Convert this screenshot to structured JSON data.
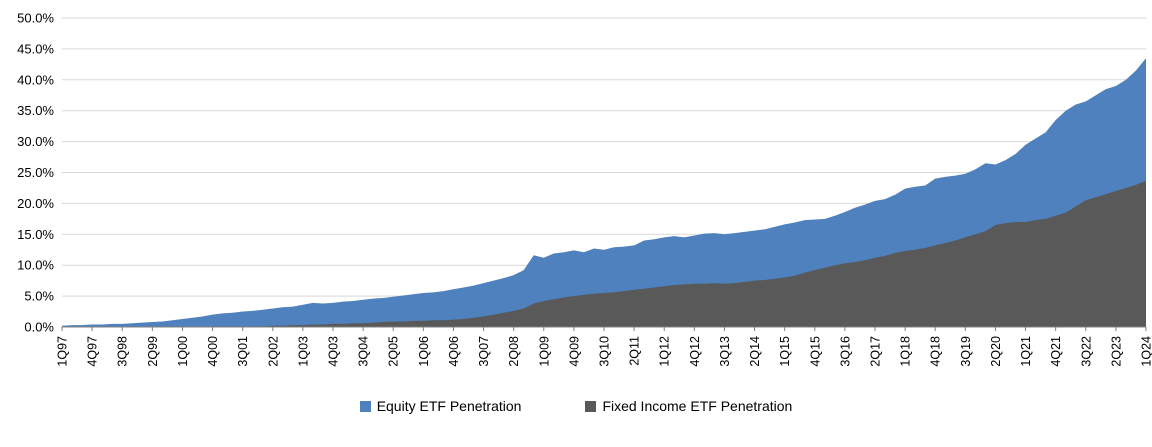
{
  "chart_data": {
    "type": "area",
    "title": "",
    "xlabel": "",
    "ylabel": "",
    "ylim": [
      0,
      50
    ],
    "ytick_step": 5,
    "y_tick_labels": [
      "0.0%",
      "5.0%",
      "10.0%",
      "15.0%",
      "20.0%",
      "25.0%",
      "30.0%",
      "35.0%",
      "40.0%",
      "45.0%",
      "50.0%"
    ],
    "x_tick_labels": [
      "1Q97",
      "4Q97",
      "3Q98",
      "2Q99",
      "1Q00",
      "4Q00",
      "3Q01",
      "2Q02",
      "1Q03",
      "4Q03",
      "3Q04",
      "2Q05",
      "1Q06",
      "4Q06",
      "3Q07",
      "2Q08",
      "1Q09",
      "4Q09",
      "3Q10",
      "2Q11",
      "1Q12",
      "4Q12",
      "3Q13",
      "2Q14",
      "1Q15",
      "4Q15",
      "3Q16",
      "2Q17",
      "1Q18",
      "4Q18",
      "3Q19",
      "2Q20",
      "1Q21",
      "4Q21",
      "3Q22",
      "2Q23",
      "1Q24"
    ],
    "x_label_every": 3,
    "grid": true,
    "legend_position": "bottom",
    "colors": {
      "gridline": "#D9D9D9",
      "axis": "#808080",
      "tick_text": "#000000"
    },
    "series": [
      {
        "name": "Equity ETF Penetration",
        "color": "#4E81BD",
        "values": [
          0.2,
          0.3,
          0.3,
          0.4,
          0.4,
          0.5,
          0.5,
          0.6,
          0.7,
          0.8,
          0.9,
          1.1,
          1.3,
          1.5,
          1.7,
          2.0,
          2.2,
          2.3,
          2.5,
          2.6,
          2.8,
          3.0,
          3.2,
          3.3,
          3.6,
          3.9,
          3.8,
          3.9,
          4.1,
          4.2,
          4.4,
          4.6,
          4.7,
          4.9,
          5.1,
          5.3,
          5.5,
          5.6,
          5.8,
          6.1,
          6.4,
          6.7,
          7.1,
          7.5,
          7.9,
          8.4,
          9.2,
          11.6,
          11.2,
          11.9,
          12.1,
          12.4,
          12.1,
          12.7,
          12.5,
          12.9,
          13.0,
          13.2,
          14.0,
          14.2,
          14.5,
          14.7,
          14.5,
          14.8,
          15.1,
          15.2,
          15.0,
          15.2,
          15.4,
          15.6,
          15.8,
          16.2,
          16.6,
          16.9,
          17.3,
          17.4,
          17.5,
          18.0,
          18.6,
          19.3,
          19.8,
          20.4,
          20.7,
          21.4,
          22.4,
          22.7,
          22.9,
          24.0,
          24.3,
          24.5,
          24.8,
          25.5,
          26.5,
          26.3,
          27.0,
          28.0,
          29.5,
          30.5,
          31.5,
          33.5,
          35.0,
          36.0,
          36.5,
          37.5,
          38.5,
          39.0,
          40.0,
          41.5,
          43.5
        ]
      },
      {
        "name": "Fixed Income ETF Penetration",
        "color": "#595959",
        "values": [
          0.0,
          0.0,
          0.0,
          0.0,
          0.0,
          0.0,
          0.0,
          0.0,
          0.0,
          0.0,
          0.0,
          0.0,
          0.0,
          0.0,
          0.0,
          0.1,
          0.1,
          0.1,
          0.1,
          0.1,
          0.1,
          0.2,
          0.2,
          0.3,
          0.3,
          0.4,
          0.4,
          0.5,
          0.5,
          0.6,
          0.6,
          0.7,
          0.8,
          0.9,
          0.9,
          1.0,
          1.0,
          1.1,
          1.1,
          1.2,
          1.3,
          1.5,
          1.7,
          2.0,
          2.3,
          2.6,
          3.0,
          3.8,
          4.2,
          4.5,
          4.8,
          5.0,
          5.2,
          5.4,
          5.5,
          5.6,
          5.8,
          6.0,
          6.2,
          6.4,
          6.6,
          6.8,
          6.9,
          7.0,
          7.0,
          7.1,
          7.0,
          7.1,
          7.3,
          7.5,
          7.6,
          7.8,
          8.0,
          8.3,
          8.8,
          9.2,
          9.6,
          10.0,
          10.3,
          10.5,
          10.8,
          11.2,
          11.5,
          12.0,
          12.3,
          12.5,
          12.8,
          13.2,
          13.6,
          14.0,
          14.5,
          15.0,
          15.5,
          16.5,
          16.8,
          17.0,
          17.0,
          17.3,
          17.5,
          18.0,
          18.5,
          19.5,
          20.5,
          21.0,
          21.5,
          22.0,
          22.5,
          23.0,
          23.7
        ]
      }
    ]
  }
}
